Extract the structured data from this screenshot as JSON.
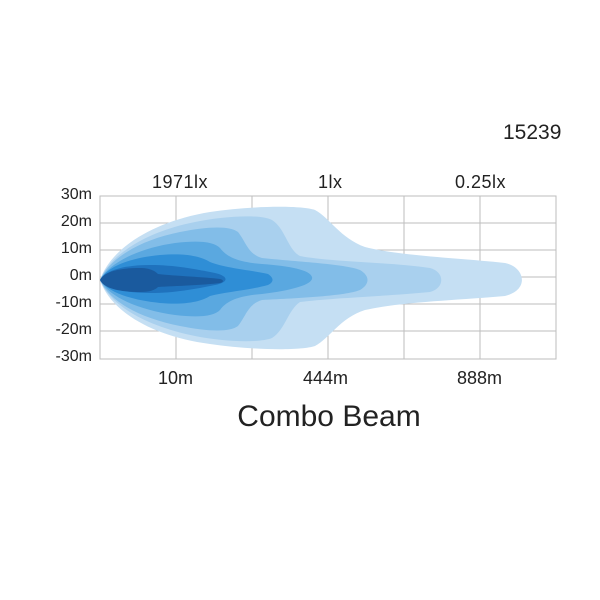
{
  "product_code": "15239",
  "title": "Combo Beam",
  "lux_labels": [
    "1971lx",
    "1lx",
    "0.25lx"
  ],
  "y_axis_labels": [
    "30m",
    "20m",
    "10m",
    "0m",
    "-10m",
    "-20m",
    "-30m"
  ],
  "x_axis_labels": [
    "10m",
    "444m",
    "888m"
  ],
  "colors": {
    "beam_1": "#c5dff3",
    "beam_2": "#a9d0ee",
    "beam_3": "#82bde8",
    "beam_4": "#5aa8e0",
    "beam_5": "#2f8ed6",
    "beam_6": "#1f72bd",
    "beam_core": "#1a5a9e",
    "grid": "#bdbdbd"
  }
}
